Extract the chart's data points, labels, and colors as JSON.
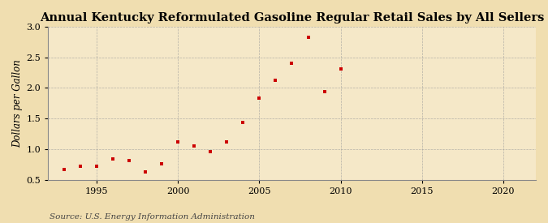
{
  "title": "Annual Kentucky Reformulated Gasoline Regular Retail Sales by All Sellers",
  "ylabel": "Dollars per Gallon",
  "source": "Source: U.S. Energy Information Administration",
  "fig_background_color": "#f0deb0",
  "plot_background_color": "#f5e8c8",
  "marker_color": "#cc0000",
  "years": [
    1993,
    1994,
    1995,
    1996,
    1997,
    1998,
    1999,
    2000,
    2001,
    2002,
    2003,
    2004,
    2005,
    2006,
    2007,
    2008,
    2009,
    2010
  ],
  "values": [
    0.67,
    0.72,
    0.72,
    0.84,
    0.81,
    0.63,
    0.76,
    1.12,
    1.05,
    0.96,
    1.12,
    1.44,
    1.84,
    2.12,
    2.4,
    2.83,
    1.94,
    2.31
  ],
  "xlim": [
    1992,
    2022
  ],
  "ylim": [
    0.5,
    3.0
  ],
  "xticks": [
    1995,
    2000,
    2005,
    2010,
    2015,
    2020
  ],
  "yticks": [
    0.5,
    1.0,
    1.5,
    2.0,
    2.5,
    3.0
  ],
  "grid_color": "#999999",
  "title_fontsize": 10.5,
  "label_fontsize": 8.5,
  "tick_fontsize": 8,
  "source_fontsize": 7.5
}
